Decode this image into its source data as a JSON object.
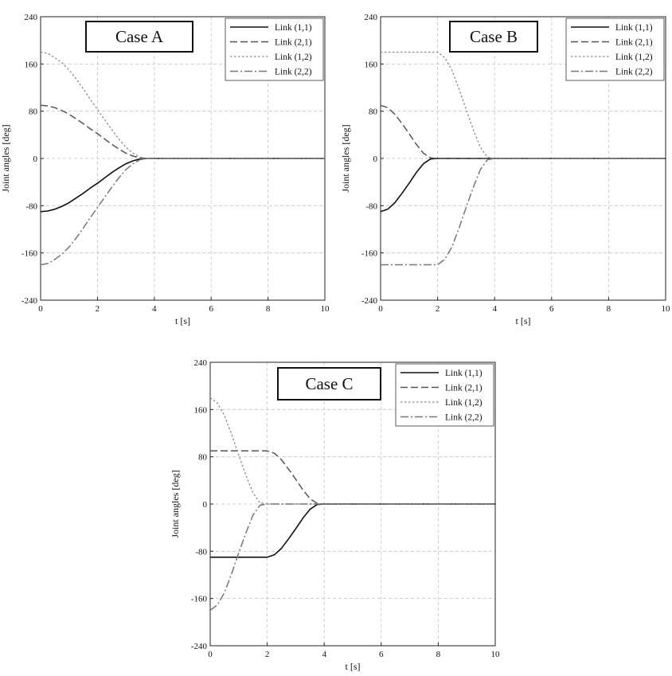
{
  "chart_data": [
    {
      "type": "line",
      "box_label": "Case A",
      "xlabel": "t [s]",
      "ylabel": "Joint angles [deg]",
      "xlim": [
        0,
        10
      ],
      "ylim": [
        -240,
        240
      ],
      "xticks": [
        0,
        2,
        4,
        6,
        8,
        10
      ],
      "yticks": [
        -240,
        -160,
        -80,
        0,
        80,
        160,
        240
      ],
      "grid": true,
      "legend_position": "top-right",
      "series": [
        {
          "name": "Link (1,1)",
          "color": "#111111",
          "style": "solid",
          "x": [
            0,
            0.25,
            0.5,
            0.75,
            1,
            1.25,
            1.5,
            1.75,
            2,
            2.25,
            2.5,
            2.75,
            3,
            3.25,
            3.5,
            3.75,
            4,
            10
          ],
          "y": [
            -90,
            -89,
            -86,
            -81,
            -75,
            -67,
            -59,
            -50,
            -42,
            -33,
            -24,
            -16,
            -9,
            -4,
            -1,
            0,
            0,
            0
          ]
        },
        {
          "name": "Link (2,1)",
          "color": "#555555",
          "style": "dash",
          "x": [
            0,
            0.25,
            0.5,
            0.75,
            1,
            1.25,
            1.5,
            1.75,
            2,
            2.25,
            2.5,
            2.75,
            3,
            3.25,
            3.5,
            3.75,
            4,
            10
          ],
          "y": [
            90,
            89,
            86,
            81,
            75,
            67,
            59,
            50,
            42,
            33,
            24,
            16,
            9,
            4,
            1,
            0,
            0,
            0
          ]
        },
        {
          "name": "Link (1,2)",
          "color": "#8a8a8a",
          "style": "dot",
          "x": [
            0,
            0.25,
            0.5,
            0.75,
            1,
            1.25,
            1.5,
            1.75,
            2,
            2.25,
            2.5,
            2.75,
            3,
            3.25,
            3.5,
            3.75,
            4,
            10
          ],
          "y": [
            180,
            178,
            171,
            162,
            150,
            135,
            118,
            100,
            83,
            66,
            49,
            33,
            19,
            9,
            2,
            0,
            0,
            0
          ]
        },
        {
          "name": "Link (2,2)",
          "color": "#777777",
          "style": "dashdot",
          "x": [
            0,
            0.25,
            0.5,
            0.75,
            1,
            1.25,
            1.5,
            1.75,
            2,
            2.25,
            2.5,
            2.75,
            3,
            3.25,
            3.5,
            3.75,
            4,
            10
          ],
          "y": [
            -180,
            -178,
            -171,
            -162,
            -150,
            -135,
            -118,
            -100,
            -83,
            -66,
            -49,
            -33,
            -19,
            -9,
            -2,
            0,
            0,
            0
          ]
        }
      ]
    },
    {
      "type": "line",
      "box_label": "Case B",
      "xlabel": "t [s]",
      "ylabel": "Joint angles [deg]",
      "xlim": [
        0,
        10
      ],
      "ylim": [
        -240,
        240
      ],
      "xticks": [
        0,
        2,
        4,
        6,
        8,
        10
      ],
      "yticks": [
        -240,
        -160,
        -80,
        0,
        80,
        160,
        240
      ],
      "grid": true,
      "legend_position": "top-right",
      "series": [
        {
          "name": "Link (1,1)",
          "color": "#111111",
          "style": "solid",
          "x": [
            0,
            0.25,
            0.5,
            0.75,
            1,
            1.25,
            1.5,
            1.75,
            2,
            10
          ],
          "y": [
            -90,
            -86,
            -75,
            -59,
            -42,
            -24,
            -9,
            -1,
            0,
            0
          ]
        },
        {
          "name": "Link (2,1)",
          "color": "#555555",
          "style": "dash",
          "x": [
            0,
            0.25,
            0.5,
            0.75,
            1,
            1.25,
            1.5,
            1.75,
            2,
            10
          ],
          "y": [
            90,
            86,
            75,
            59,
            42,
            24,
            9,
            1,
            0,
            0
          ]
        },
        {
          "name": "Link (1,2)",
          "color": "#8a8a8a",
          "style": "dot",
          "x": [
            0,
            2,
            2.25,
            2.5,
            2.75,
            3,
            3.25,
            3.5,
            3.75,
            4,
            10
          ],
          "y": [
            180,
            180,
            171,
            150,
            118,
            83,
            49,
            19,
            2,
            0,
            0
          ]
        },
        {
          "name": "Link (2,2)",
          "color": "#777777",
          "style": "dashdot",
          "x": [
            0,
            2,
            2.25,
            2.5,
            2.75,
            3,
            3.25,
            3.5,
            3.75,
            4,
            10
          ],
          "y": [
            -180,
            -180,
            -171,
            -150,
            -118,
            -83,
            -49,
            -19,
            -2,
            0,
            0
          ]
        }
      ]
    },
    {
      "type": "line",
      "box_label": "Case C",
      "xlabel": "t [s]",
      "ylabel": "Joint angles [deg]",
      "xlim": [
        0,
        10
      ],
      "ylim": [
        -240,
        240
      ],
      "xticks": [
        0,
        2,
        4,
        6,
        8,
        10
      ],
      "yticks": [
        -240,
        -160,
        -80,
        0,
        80,
        160,
        240
      ],
      "grid": true,
      "legend_position": "top-right",
      "series": [
        {
          "name": "Link (1,1)",
          "color": "#111111",
          "style": "solid",
          "x": [
            0,
            2,
            2.25,
            2.5,
            2.75,
            3,
            3.25,
            3.5,
            3.75,
            4,
            10
          ],
          "y": [
            -90,
            -90,
            -86,
            -75,
            -59,
            -42,
            -24,
            -9,
            -1,
            0,
            0
          ]
        },
        {
          "name": "Link (2,1)",
          "color": "#555555",
          "style": "dash",
          "x": [
            0,
            2,
            2.25,
            2.5,
            2.75,
            3,
            3.25,
            3.5,
            3.75,
            4,
            10
          ],
          "y": [
            90,
            90,
            86,
            75,
            59,
            42,
            24,
            9,
            1,
            0,
            0
          ]
        },
        {
          "name": "Link (1,2)",
          "color": "#8a8a8a",
          "style": "dot",
          "x": [
            0,
            0.25,
            0.5,
            0.75,
            1,
            1.25,
            1.5,
            1.75,
            2,
            10
          ],
          "y": [
            180,
            171,
            150,
            118,
            83,
            49,
            19,
            2,
            0,
            0
          ]
        },
        {
          "name": "Link (2,2)",
          "color": "#777777",
          "style": "dashdot",
          "x": [
            0,
            0.25,
            0.5,
            0.75,
            1,
            1.25,
            1.5,
            1.75,
            2,
            10
          ],
          "y": [
            -180,
            -171,
            -150,
            -118,
            -83,
            -49,
            -19,
            -2,
            0,
            0
          ]
        }
      ]
    }
  ]
}
